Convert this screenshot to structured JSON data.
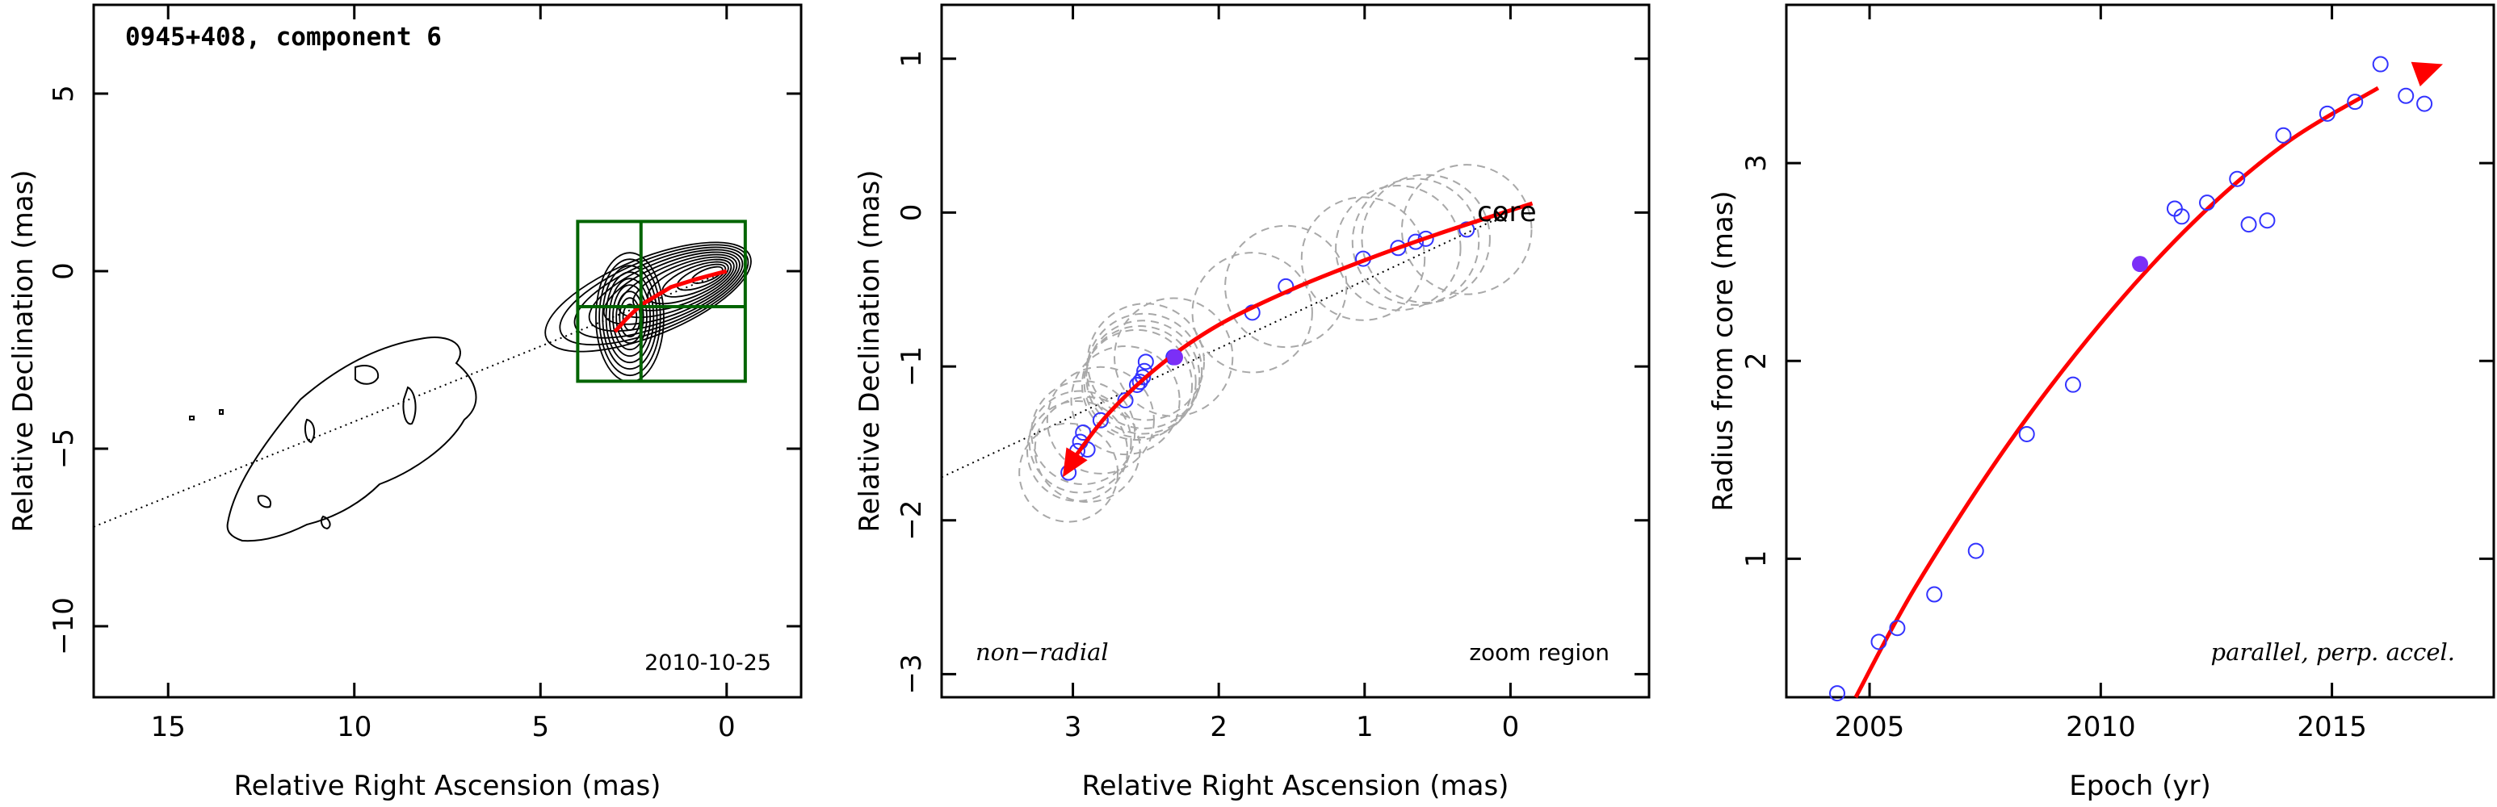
{
  "colors": {
    "axis": "#000000",
    "fit": "#ff0000",
    "points": "#3333ff",
    "highlight": "#7b2ff7",
    "circles": "#a8a8a8",
    "box": "#006400"
  },
  "chart_data": [
    {
      "type": "contour",
      "title": "0945+408, component 6",
      "date_label": "2010-10-25",
      "xlabel": "Relative Right Ascension (mas)",
      "ylabel": "Relative Declination (mas)",
      "xlim": [
        17,
        -2
      ],
      "ylim": [
        -12,
        7.5
      ],
      "xticks": [
        15,
        10,
        5,
        0
      ],
      "xtick_labels": [
        "15",
        "10",
        "5",
        "0"
      ],
      "yticks": [
        5,
        0,
        -5,
        -10
      ],
      "ytick_labels": [
        "5",
        "0",
        "−5",
        "−10"
      ],
      "jet_axis_line": [
        [
          17,
          -7.2
        ],
        [
          0,
          0
        ]
      ],
      "zoom_box": {
        "x": [
          4,
          -0.5
        ],
        "y": [
          -3.1,
          1.4
        ],
        "cross_x": 2.3,
        "cross_y": -1.0
      },
      "trail": [
        [
          3.0,
          -1.7
        ],
        [
          2.7,
          -1.35
        ],
        [
          2.3,
          -0.95
        ],
        [
          1.5,
          -0.45
        ],
        [
          0.8,
          -0.22
        ],
        [
          0.3,
          -0.08
        ],
        [
          0,
          0
        ]
      ],
      "grid": false
    },
    {
      "type": "scatter",
      "title": "",
      "annotations": [
        "non−radial",
        "zoom region",
        "core"
      ],
      "xlabel": "Relative Right Ascension (mas)",
      "ylabel": "Relative Declination (mas)",
      "xlim": [
        3.9,
        -0.95
      ],
      "ylim": [
        -3.15,
        1.35
      ],
      "xticks": [
        3,
        2,
        1,
        0
      ],
      "xtick_labels": [
        "3",
        "2",
        "1",
        "0"
      ],
      "yticks": [
        1,
        0,
        -1,
        -2,
        -3
      ],
      "ytick_labels": [
        "1",
        "0",
        "−1",
        "−2",
        "−3"
      ],
      "core": [
        0,
        0
      ],
      "x": [
        3.03,
        2.97,
        2.95,
        2.93,
        2.9,
        2.81,
        2.64,
        2.56,
        2.54,
        2.52,
        2.51,
        2.5,
        2.31,
        1.77,
        1.54,
        1.01,
        0.77,
        0.65,
        0.58,
        0.3
      ],
      "y": [
        -1.69,
        -1.55,
        -1.49,
        -1.43,
        -1.54,
        -1.35,
        -1.22,
        -1.12,
        -1.1,
        -1.07,
        -1.03,
        -0.97,
        -0.94,
        -0.65,
        -0.48,
        -0.3,
        -0.23,
        -0.19,
        -0.17,
        -0.11
      ],
      "highlight": [
        2.3,
        -0.94
      ],
      "circle_radius_mas": 0.45,
      "fit_curve": [
        [
          -0.15,
          0.06
        ],
        [
          0.5,
          -0.14
        ],
        [
          1.0,
          -0.31
        ],
        [
          1.5,
          -0.5
        ],
        [
          2.0,
          -0.73
        ],
        [
          2.4,
          -0.99
        ],
        [
          2.75,
          -1.3
        ],
        [
          2.98,
          -1.58
        ],
        [
          3.07,
          -1.72
        ]
      ],
      "fit_arrow_end": [
        3.07,
        -1.72
      ],
      "jet_axis_line": [
        [
          3.9,
          -1.72
        ],
        [
          0,
          0
        ]
      ],
      "grid": false
    },
    {
      "type": "scatter",
      "title": "",
      "annotations": [
        "parallel, perp. accel."
      ],
      "xlabel": "Epoch (yr)",
      "ylabel": "Radius from core (mas)",
      "xlim": [
        2003.2,
        2018.5
      ],
      "ylim": [
        0.3,
        3.8
      ],
      "xticks": [
        2005,
        2010,
        2015
      ],
      "xtick_labels": [
        "2005",
        "2010",
        "2015"
      ],
      "yticks": [
        1,
        2,
        3
      ],
      "ytick_labels": [
        "1",
        "2",
        "3"
      ],
      "x": [
        2004.3,
        2005.2,
        2005.6,
        2006.4,
        2007.3,
        2008.4,
        2009.4,
        2011.6,
        2011.75,
        2012.3,
        2012.95,
        2013.2,
        2013.6,
        2013.95,
        2014.9,
        2015.5,
        2016.05,
        2016.6,
        2017.0
      ],
      "y": [
        0.32,
        0.58,
        0.65,
        0.82,
        1.04,
        1.63,
        1.88,
        2.77,
        2.73,
        2.8,
        2.92,
        2.69,
        2.71,
        3.14,
        3.25,
        3.31,
        3.5,
        3.34,
        3.3
      ],
      "highlight": [
        2010.85,
        2.49
      ],
      "fit_curve": [
        [
          2004.7,
          0.3
        ],
        [
          2006,
          0.86
        ],
        [
          2008,
          1.58
        ],
        [
          2010,
          2.19
        ],
        [
          2012,
          2.7
        ],
        [
          2014,
          3.1
        ],
        [
          2016,
          3.38
        ],
        [
          2017.4,
          3.5
        ]
      ],
      "grid": false
    }
  ]
}
